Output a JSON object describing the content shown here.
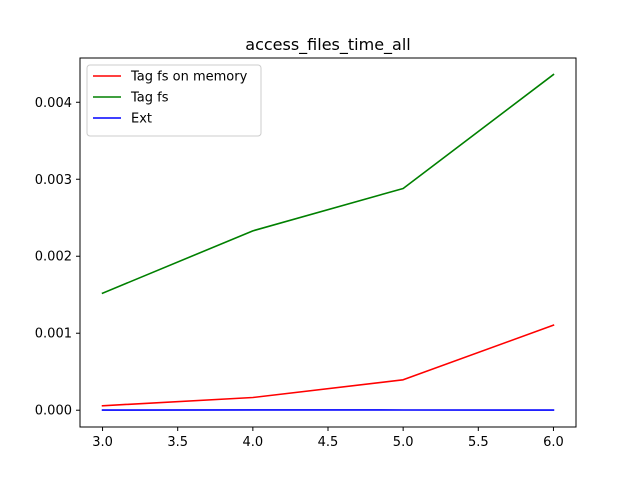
{
  "chart_data": {
    "type": "line",
    "title": "access_files_time_all",
    "xlabel": "",
    "ylabel": "",
    "x": [
      3.0,
      4.0,
      5.0,
      6.0
    ],
    "xlim": [
      2.85,
      6.15
    ],
    "ylim": [
      -0.000218,
      0.004575
    ],
    "xticks": [
      "3.0",
      "3.5",
      "4.0",
      "4.5",
      "5.0",
      "5.5",
      "6.0"
    ],
    "xtick_values": [
      3.0,
      3.5,
      4.0,
      4.5,
      5.0,
      5.5,
      6.0
    ],
    "yticks": [
      "0.000",
      "0.001",
      "0.002",
      "0.003",
      "0.004"
    ],
    "ytick_values": [
      0.0,
      0.001,
      0.002,
      0.003,
      0.004
    ],
    "grid": false,
    "legend_position": "top-left",
    "series": [
      {
        "name": "Tag fs on memory",
        "color": "#ff0000",
        "values": [
          5.8e-05,
          0.000165,
          0.000395,
          0.001105
        ]
      },
      {
        "name": "Tag fs",
        "color": "#008000",
        "values": [
          0.00152,
          0.00233,
          0.00288,
          0.00436
        ]
      },
      {
        "name": "Ext",
        "color": "#0000ff",
        "values": [
          2e-06,
          4e-06,
          3e-06,
          2e-06
        ]
      }
    ]
  }
}
